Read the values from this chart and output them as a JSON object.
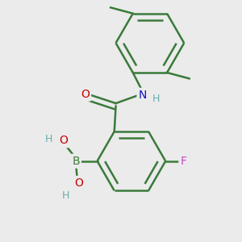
{
  "background_color": "#ebebeb",
  "bond_color": "#3a7a3a",
  "bond_width": 1.8,
  "atom_colors": {
    "C": "#3a7a3a",
    "N": "#1111cc",
    "O": "#cc0000",
    "B": "#3a7a3a",
    "F": "#cc44cc",
    "H": "#6aadad"
  },
  "font_size": 10,
  "fig_width": 3.0,
  "fig_height": 3.0,
  "dpi": 100
}
